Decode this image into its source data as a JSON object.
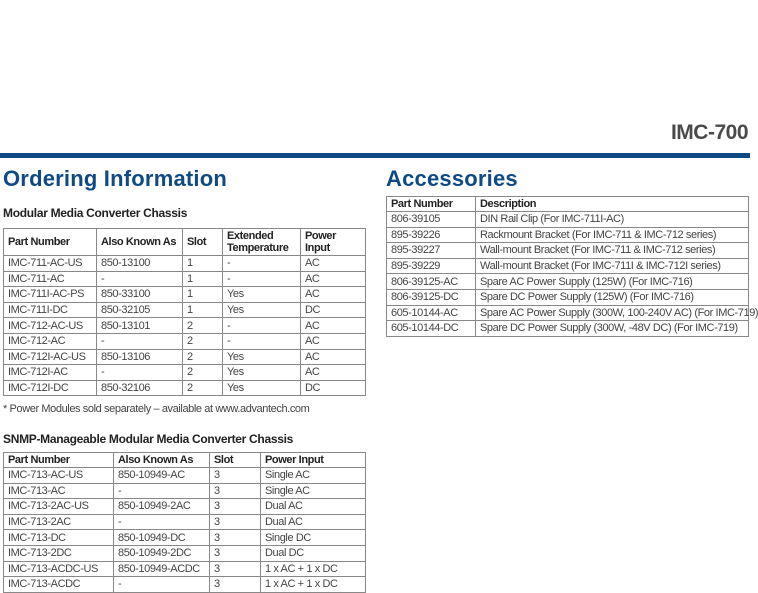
{
  "header": {
    "product": "IMC-700"
  },
  "ordering": {
    "title": "Ordering Information",
    "modular": {
      "title": "Modular Media Converter Chassis",
      "columns": [
        "Part Number",
        "Also Known As",
        "Slot",
        "Extended Temperature",
        "Power Input"
      ],
      "rows": [
        [
          "IMC-711-AC-US",
          "850-13100",
          "1",
          "-",
          "AC"
        ],
        [
          "IMC-711-AC",
          "-",
          "1",
          "-",
          "AC"
        ],
        [
          "IMC-711I-AC-PS",
          "850-33100",
          "1",
          "Yes",
          "AC"
        ],
        [
          "IMC-711I-DC",
          "850-32105",
          "1",
          "Yes",
          "DC"
        ],
        [
          "IMC-712-AC-US",
          "850-13101",
          "2",
          "-",
          "AC"
        ],
        [
          "IMC-712-AC",
          "-",
          "2",
          "-",
          "AC"
        ],
        [
          "IMC-712I-AC-US",
          "850-13106",
          "2",
          "Yes",
          "AC"
        ],
        [
          "IMC-712I-AC",
          "-",
          "2",
          "Yes",
          "AC"
        ],
        [
          "IMC-712I-DC",
          "850-32106",
          "2",
          "Yes",
          "DC"
        ]
      ],
      "footnote": "* Power Modules sold separately – available at www.advantech.com"
    },
    "snmp": {
      "title": "SNMP-Manageable Modular Media Converter Chassis",
      "columns": [
        "Part Number",
        "Also Known As",
        "Slot",
        "Power Input"
      ],
      "rows": [
        [
          "IMC-713-AC-US",
          "850-10949-AC",
          "3",
          "Single AC"
        ],
        [
          "IMC-713-AC",
          "-",
          "3",
          "Single AC"
        ],
        [
          "IMC-713-2AC-US",
          "850-10949-2AC",
          "3",
          "Dual AC"
        ],
        [
          "IMC-713-2AC",
          "-",
          "3",
          "Dual AC"
        ],
        [
          "IMC-713-DC",
          "850-10949-DC",
          "3",
          "Single DC"
        ],
        [
          "IMC-713-2DC",
          "850-10949-2DC",
          "3",
          "Dual DC"
        ],
        [
          "IMC-713-ACDC-US",
          "850-10949-ACDC",
          "3",
          "1 x AC + 1 x DC"
        ],
        [
          "IMC-713-ACDC",
          "-",
          "3",
          "1 x AC + 1 x DC"
        ]
      ]
    }
  },
  "accessories": {
    "title": "Accessories",
    "columns": [
      "Part Number",
      "Description"
    ],
    "rows": [
      [
        "806-39105",
        "DIN Rail Clip (For IMC-711I-AC)"
      ],
      [
        "895-39226",
        "Rackmount Bracket (For IMC-711 & IMC-712 series)"
      ],
      [
        "895-39227",
        "Wall-mount Bracket (For IMC-711 & IMC-712 series)"
      ],
      [
        "895-39229",
        "Wall-mount Bracket (For IMC-711I & IMC-712I series)"
      ],
      [
        "806-39125-AC",
        "Spare AC Power Supply (125W) (For IMC-716)"
      ],
      [
        "806-39125-DC",
        "Spare DC Power Supply (125W) (For IMC-716)"
      ],
      [
        "605-10144-AC",
        "Spare AC Power Supply (300W, 100-240V AC) (For IMC-719)"
      ],
      [
        "605-10144-DC",
        "Spare DC Power Supply (300W, -48V DC) (For IMC-719)"
      ]
    ]
  },
  "colors": {
    "brand": "#0f4a85"
  }
}
